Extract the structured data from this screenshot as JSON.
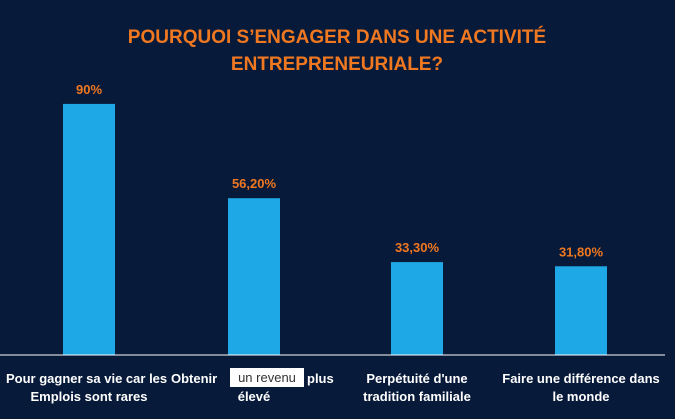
{
  "chart_data": {
    "type": "bar",
    "title_lines": [
      "POURQUOI S’ENGAGER DANS UNE ACTIVITÉ",
      "ENTREPRENEURIALE?"
    ],
    "categories": [
      "Pour gagner sa vie car les Emplois sont rares",
      "Obtenir un revenu plus élevé",
      "Perpétuité d'une tradition familiale",
      "Faire une différence dans le monde"
    ],
    "category_lines": [
      [
        "Pour gagner sa vie car les",
        "Emplois sont rares"
      ],
      [
        "Obtenir",
        "plus",
        "élevé"
      ],
      [
        "Perpétuité d'une",
        "tradition familiale"
      ],
      [
        "Faire une différence dans",
        "le monde"
      ]
    ],
    "overlay_text": "un revenu",
    "values": [
      90,
      56.2,
      33.3,
      31.8
    ],
    "data_labels": [
      "90%",
      "56,20%",
      "33,30%",
      "31,80%"
    ],
    "ylim": [
      0,
      100
    ],
    "grid": false,
    "legend": "none",
    "colors": {
      "background": "#081a3a",
      "bar": "#1ea8e6",
      "title": "#f07820",
      "data_label": "#f07820",
      "category_label": "#ffffff",
      "axis": "#ffffff",
      "overlay_box": "#ffffff",
      "overlay_text": "#333333"
    }
  }
}
